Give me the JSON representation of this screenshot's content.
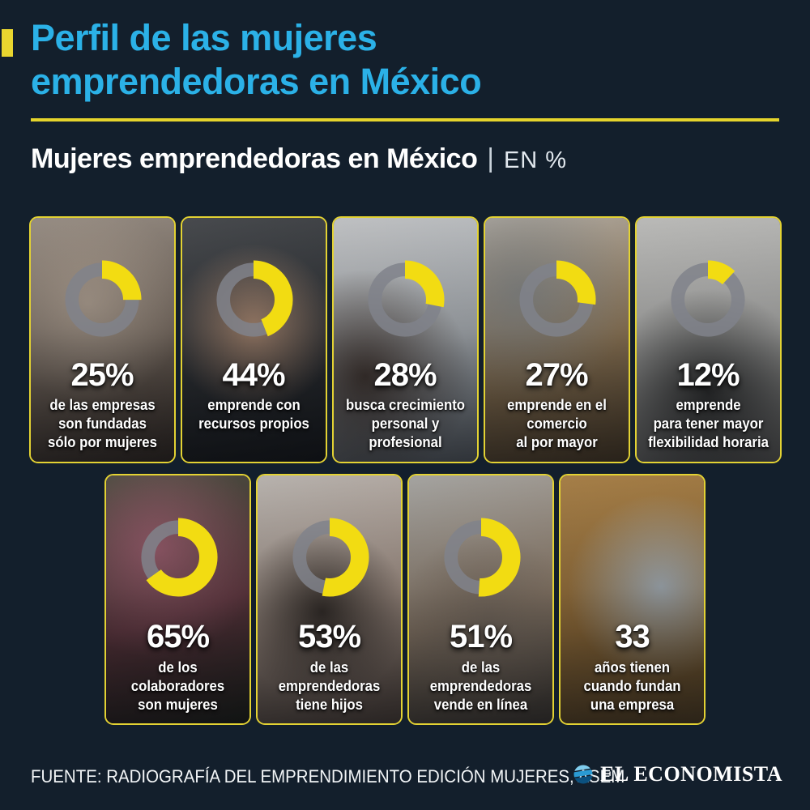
{
  "page": {
    "background": "#131f2c",
    "accent_yellow": "#e9d62f",
    "accent_cyan": "#2bb1e7",
    "donut_yellow": "#f2dc12",
    "donut_gray": "#80838b"
  },
  "header": {
    "title_line1": "Perfil de las mujeres",
    "title_line2": "emprendedoras en México",
    "subtitle": "Mujeres emprendedoras en México",
    "subtitle_sep": "|",
    "subtitle_unit": "EN %"
  },
  "chart_data": {
    "type": "pie",
    "subtype": "donut-grid",
    "title": "Mujeres emprendedoras en México",
    "unit": "EN %",
    "legend_position": "none",
    "items": [
      {
        "value": 25,
        "is_percent": true,
        "label": "de las empresas son fundadas sólo por mujeres"
      },
      {
        "value": 44,
        "is_percent": true,
        "label": "emprende con recursos propios"
      },
      {
        "value": 28,
        "is_percent": true,
        "label": "busca crecimiento personal y profesional"
      },
      {
        "value": 27,
        "is_percent": true,
        "label": "emprende en el comercio al por mayor"
      },
      {
        "value": 12,
        "is_percent": true,
        "label": "emprende para tener mayor flexibilidad horaria"
      },
      {
        "value": 65,
        "is_percent": true,
        "label": "de los colaboradores son mujeres"
      },
      {
        "value": 53,
        "is_percent": true,
        "label": "de las emprendedoras tiene hijos"
      },
      {
        "value": 51,
        "is_percent": true,
        "label": "de las emprendedoras vende en línea"
      },
      {
        "value": 33,
        "is_percent": false,
        "label": "años tienen cuando fundan una empresa"
      }
    ]
  },
  "cards": [
    {
      "value": "25%",
      "pct": 25,
      "row": 1,
      "lines": [
        "de las empresas",
        "son fundadas",
        "sólo por mujeres"
      ],
      "photo": {
        "subject": "two-women-working-over-laptop",
        "colors": [
          "#b3a79b",
          "#8a7a6c",
          "#46392f"
        ],
        "blob": "#c9b7a5",
        "blob_at": "40% 35%"
      }
    },
    {
      "value": "44%",
      "pct": 44,
      "row": 1,
      "lines": [
        "emprende con",
        "recursos propios"
      ],
      "photo": {
        "subject": "businesswoman-with-folder-dark-office",
        "colors": [
          "#55575a",
          "#36393c",
          "#1d1f22"
        ],
        "blob": "#c89f82",
        "blob_at": "50% 45%"
      }
    },
    {
      "value": "28%",
      "pct": 28,
      "row": 1,
      "lines": [
        "busca crecimiento",
        "personal y",
        "profesional"
      ],
      "photo": {
        "subject": "woman-at-wall-planner",
        "colors": [
          "#e6e7e8",
          "#c6cbcf",
          "#7e868e"
        ],
        "blob": "#4e4038",
        "blob_at": "22% 65%"
      }
    },
    {
      "value": "27%",
      "pct": 27,
      "row": 1,
      "lines": [
        "emprende en el",
        "comercio",
        "al por mayor"
      ],
      "photo": {
        "subject": "woman-packing-cardboard-boxes",
        "colors": [
          "#d3ccc2",
          "#ab8d64",
          "#6b5435"
        ],
        "blob": "#9b9b97",
        "blob_at": "25% 30%"
      }
    },
    {
      "value": "12%",
      "pct": 12,
      "row": 1,
      "lines": [
        "emprende",
        "para tener mayor",
        "flexibilidad horaria"
      ],
      "photo": {
        "subject": "woman-with-laptop-under-wall-clock",
        "colors": [
          "#e0dfdb",
          "#cac9c5",
          "#8b8a86"
        ],
        "blob": "#3a3a38",
        "blob_at": "50% 72%"
      }
    },
    {
      "value": "65%",
      "pct": 65,
      "row": 2,
      "lines": [
        "de los",
        "colaboradores",
        "son mujeres"
      ],
      "photo": {
        "subject": "florist-smiling-among-flowers",
        "colors": [
          "#4f5a45",
          "#6e3d45",
          "#272b22"
        ],
        "blob": "#b0697a",
        "blob_at": "35% 30%"
      }
    },
    {
      "value": "53%",
      "pct": 53,
      "row": 2,
      "lines": [
        "de las",
        "emprendedoras",
        "tiene hijos"
      ],
      "photo": {
        "subject": "mother-hugging-child",
        "colors": [
          "#ddd6cf",
          "#c0aa9b",
          "#6d5b4f"
        ],
        "blob": "#3c332c",
        "blob_at": "45% 55%"
      }
    },
    {
      "value": "51%",
      "pct": 51,
      "row": 2,
      "lines": [
        "de las",
        "emprendedoras",
        "vende en línea"
      ],
      "photo": {
        "subject": "woman-checking-phone-in-warehouse",
        "colors": [
          "#c6c4bf",
          "#a9937c",
          "#585046"
        ],
        "blob": "#8f7f6f",
        "blob_at": "55% 60%"
      }
    },
    {
      "value": "33",
      "pct": null,
      "row": 2,
      "lines": [
        "años tienen",
        "cuando fundan",
        "una empresa"
      ],
      "photo": {
        "subject": "young-woman-with-glasses-at-laptop-corkboard",
        "colors": [
          "#c79753",
          "#b08140",
          "#73582f"
        ],
        "blob": "#c3cdd4",
        "blob_at": "70% 45%"
      }
    }
  ],
  "footer": {
    "source": "FUENTE: RADIOGRAFÍA DEL EMPRENDIMIENTO EDICIÓN MUJERES, ASEM",
    "brand": "EL ECONOMISTA"
  }
}
